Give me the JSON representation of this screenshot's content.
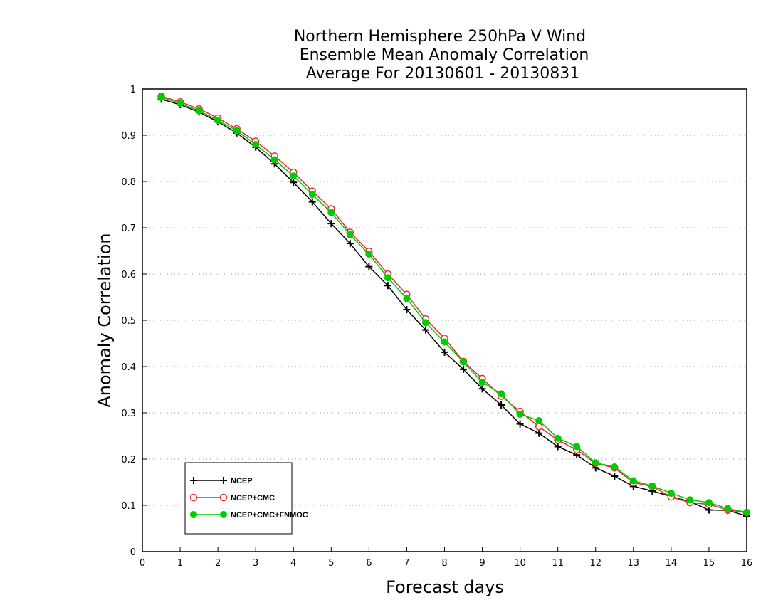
{
  "chart_data": {
    "type": "line",
    "title": [
      "Northern Hemisphere 250hPa V Wind",
      "Ensemble Mean Anomaly Correlation",
      "Average For 20130601 - 20130831"
    ],
    "xlabel": "Forecast days",
    "ylabel": "Anomaly Correlation",
    "xlim": [
      0,
      16
    ],
    "ylim": [
      0,
      1
    ],
    "x_ticks": [
      0,
      1,
      2,
      3,
      4,
      5,
      6,
      7,
      8,
      9,
      10,
      11,
      12,
      13,
      14,
      15,
      16
    ],
    "y_ticks": [
      0,
      0.1,
      0.2,
      0.3,
      0.4,
      0.5,
      0.6,
      0.7,
      0.8,
      0.9,
      1
    ],
    "y_tick_labels": [
      "0",
      "0.1",
      "0.2",
      "0.3",
      "0.4",
      "0.5",
      "0.6",
      "0.7",
      "0.8",
      "0.9",
      "1"
    ],
    "grid": "horizontal dotted",
    "legend_position": "bottom-left",
    "x": [
      0.5,
      1,
      1.5,
      2,
      2.5,
      3,
      3.5,
      4,
      4.5,
      5,
      5.5,
      6,
      6.5,
      7,
      7.5,
      8,
      8.5,
      9,
      9.5,
      10,
      10.5,
      11,
      11.5,
      12,
      12.5,
      13,
      13.5,
      14,
      14.5,
      15,
      15.5,
      16
    ],
    "series": [
      {
        "name": "NCEP",
        "color": "#000000",
        "marker": "plus",
        "values": [
          0.978,
          0.966,
          0.95,
          0.929,
          0.905,
          0.874,
          0.838,
          0.798,
          0.756,
          0.709,
          0.666,
          0.616,
          0.575,
          0.523,
          0.479,
          0.431,
          0.394,
          0.352,
          0.317,
          0.276,
          0.256,
          0.227,
          0.209,
          0.181,
          0.163,
          0.141,
          0.131,
          0.119,
          0.108,
          0.09,
          0.089,
          0.077
        ]
      },
      {
        "name": "NCEP+CMC",
        "color": "#e53030",
        "marker": "open-circle",
        "values": [
          0.984,
          0.972,
          0.957,
          0.937,
          0.914,
          0.887,
          0.855,
          0.82,
          0.779,
          0.741,
          0.69,
          0.649,
          0.6,
          0.556,
          0.503,
          0.461,
          0.411,
          0.374,
          0.336,
          0.303,
          0.27,
          0.241,
          0.22,
          0.191,
          0.181,
          0.149,
          0.141,
          0.118,
          0.106,
          0.102,
          0.09,
          0.084
        ]
      },
      {
        "name": "NCEP+CMC+FNMOC",
        "color": "#00cc00",
        "marker": "filled-circle",
        "values": [
          0.982,
          0.969,
          0.953,
          0.932,
          0.91,
          0.88,
          0.847,
          0.812,
          0.772,
          0.733,
          0.685,
          0.643,
          0.592,
          0.547,
          0.495,
          0.453,
          0.41,
          0.366,
          0.341,
          0.297,
          0.283,
          0.245,
          0.227,
          0.192,
          0.183,
          0.153,
          0.142,
          0.126,
          0.112,
          0.106,
          0.093,
          0.085
        ]
      }
    ]
  }
}
